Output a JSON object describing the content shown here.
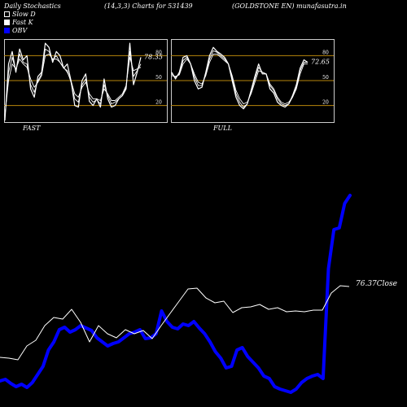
{
  "header": {
    "title": "Daily Stochastics",
    "params": "(14,3,3) Charts for 531439",
    "source": "(GOLDSTONE EN) munafasutra.in"
  },
  "legend": [
    {
      "label": "Slow  D",
      "color": "#ffffff"
    },
    {
      "label": "Fast K",
      "color": "#ffffff"
    },
    {
      "label": "OBV",
      "color": "#0000ff"
    }
  ],
  "colors": {
    "background": "#000000",
    "panel": "#000000",
    "panel_border": "#cccccc",
    "level_line": "#b8860b",
    "stoch_line": "#ffffff",
    "obv": "#0000ff",
    "close": "#ffffff"
  },
  "chart_data": [
    {
      "type": "line",
      "title": "FAST",
      "ylim": [
        0,
        100
      ],
      "levels": [
        80,
        50,
        20
      ],
      "yticks": [
        "80",
        "50",
        "20"
      ],
      "value_label": "78.35",
      "series": [
        {
          "values": [
            2,
            70,
            85,
            60,
            88,
            75,
            80,
            40,
            30,
            55,
            60,
            95,
            90,
            72,
            85,
            80,
            65,
            70,
            50,
            20,
            18,
            50,
            58,
            25,
            20,
            28,
            18,
            52,
            28,
            18,
            20,
            28,
            32,
            40,
            95,
            45,
            60,
            78
          ]
        },
        {
          "values": [
            5,
            60,
            78,
            62,
            82,
            72,
            70,
            45,
            36,
            50,
            58,
            88,
            85,
            75,
            80,
            72,
            65,
            62,
            48,
            28,
            24,
            45,
            52,
            30,
            24,
            27,
            22,
            45,
            32,
            22,
            24,
            28,
            32,
            42,
            85,
            55,
            62,
            70
          ]
        },
        {
          "values": [
            8,
            50,
            70,
            64,
            76,
            70,
            66,
            52,
            42,
            48,
            56,
            80,
            82,
            76,
            76,
            72,
            66,
            60,
            50,
            34,
            30,
            42,
            48,
            34,
            28,
            28,
            26,
            40,
            34,
            26,
            26,
            30,
            34,
            44,
            78,
            62,
            64,
            66
          ]
        }
      ]
    },
    {
      "type": "line",
      "title": "FULL",
      "ylim": [
        0,
        100
      ],
      "levels": [
        80,
        50,
        20
      ],
      "yticks": [
        "80",
        "50",
        "20"
      ],
      "value_label": "72.65",
      "series": [
        {
          "values": [
            60,
            52,
            60,
            78,
            80,
            70,
            50,
            40,
            42,
            60,
            80,
            90,
            85,
            82,
            78,
            70,
            50,
            30,
            20,
            16,
            22,
            38,
            55,
            70,
            58,
            58,
            40,
            35,
            24,
            20,
            18,
            22,
            32,
            45,
            65,
            75,
            72
          ]
        },
        {
          "values": [
            58,
            54,
            58,
            74,
            78,
            70,
            55,
            44,
            44,
            58,
            76,
            86,
            84,
            80,
            76,
            70,
            54,
            34,
            24,
            18,
            22,
            36,
            52,
            66,
            60,
            58,
            44,
            38,
            28,
            22,
            20,
            22,
            30,
            42,
            62,
            72,
            72
          ]
        },
        {
          "values": [
            56,
            55,
            57,
            70,
            76,
            70,
            58,
            48,
            46,
            56,
            72,
            82,
            82,
            78,
            74,
            70,
            56,
            38,
            28,
            22,
            24,
            34,
            48,
            62,
            60,
            58,
            46,
            40,
            30,
            24,
            22,
            24,
            30,
            40,
            58,
            70,
            70
          ]
        }
      ]
    },
    {
      "type": "line",
      "series": [
        {
          "name": "OBV",
          "values": [
            468,
            466,
            471,
            475,
            472,
            476,
            470,
            460,
            450,
            430,
            420,
            405,
            402,
            408,
            405,
            400,
            403,
            406,
            415,
            420,
            425,
            422,
            420,
            415,
            410,
            408,
            405,
            416,
            415,
            410,
            382,
            395,
            402,
            404,
            398,
            400,
            395,
            403,
            410,
            420,
            432,
            440,
            452,
            450,
            430,
            427,
            438,
            445,
            452,
            462,
            465,
            475,
            478,
            480,
            482,
            478,
            470,
            465,
            462,
            460,
            465,
            330,
            282,
            280,
            250,
            240
          ]
        },
        {
          "name": "Close",
          "values": [
            439,
            440,
            442,
            425,
            418,
            400,
            390,
            392,
            380,
            396,
            420,
            400,
            410,
            415,
            405,
            410,
            406,
            416,
            400,
            385,
            370,
            355,
            354,
            366,
            372,
            370,
            384,
            378,
            377,
            374,
            380,
            378,
            383,
            382,
            383,
            381,
            381,
            360,
            351,
            352
          ],
          "end_label": "76.37Close"
        }
      ]
    }
  ]
}
